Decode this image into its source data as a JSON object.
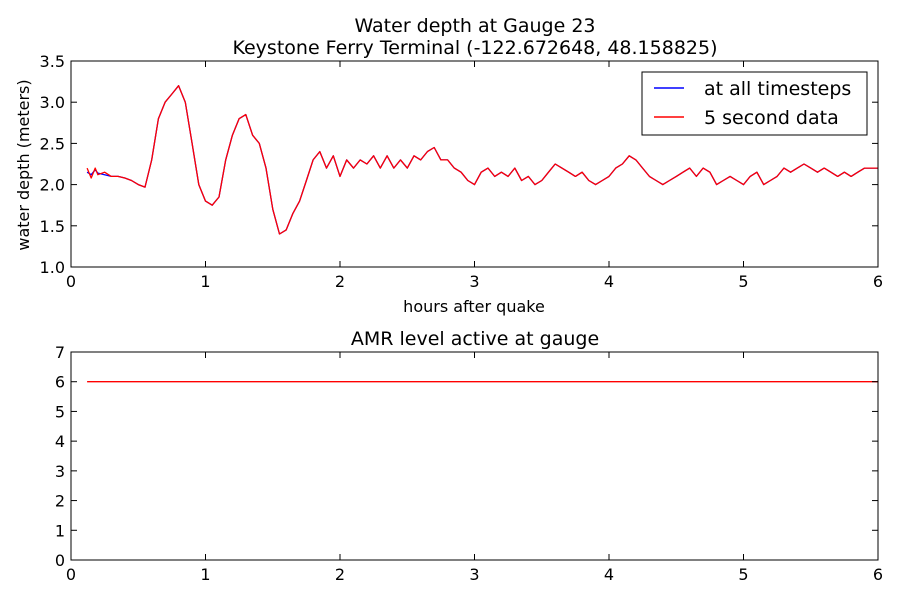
{
  "chart_data": [
    {
      "type": "line",
      "title": "Water depth at Gauge 23",
      "subtitle": "Keystone Ferry Terminal  (-122.672648, 48.158825)",
      "xlabel": "hours after quake",
      "ylabel": "water depth (meters)",
      "xlim": [
        0,
        6
      ],
      "ylim": [
        1.0,
        3.5
      ],
      "xticks": [
        "0",
        "1",
        "2",
        "3",
        "4",
        "5",
        "6"
      ],
      "yticks": [
        "1.0",
        "1.5",
        "2.0",
        "2.5",
        "3.0",
        "3.5"
      ],
      "grid": false,
      "legend_position": "top-right",
      "series": [
        {
          "name": "at all timesteps",
          "color": "#0000ff",
          "x": [
            0.12,
            0.15,
            0.18,
            0.2,
            0.25,
            0.3,
            0.35,
            0.4,
            0.45,
            0.5,
            0.55,
            0.6,
            0.65,
            0.7,
            0.75,
            0.8,
            0.85,
            0.9,
            0.95,
            1.0,
            1.05,
            1.1,
            1.15,
            1.2,
            1.25,
            1.3,
            1.35,
            1.4,
            1.45,
            1.5,
            1.55,
            1.6,
            1.65,
            1.7,
            1.75,
            1.8,
            1.85,
            1.9,
            1.95,
            2.0,
            2.05,
            2.1,
            2.15,
            2.2,
            2.25,
            2.3,
            2.35,
            2.4,
            2.45,
            2.5,
            2.55,
            2.6,
            2.65,
            2.7,
            2.75,
            2.8,
            2.85,
            2.9,
            2.95,
            3.0,
            3.05,
            3.1,
            3.15,
            3.2,
            3.25,
            3.3,
            3.35,
            3.4,
            3.45,
            3.5,
            3.55,
            3.6,
            3.65,
            3.7,
            3.75,
            3.8,
            3.85,
            3.9,
            3.95,
            4.0,
            4.05,
            4.1,
            4.15,
            4.2,
            4.25,
            4.3,
            4.35,
            4.4,
            4.45,
            4.5,
            4.55,
            4.6,
            4.65,
            4.7,
            4.75,
            4.8,
            4.85,
            4.9,
            4.95,
            5.0,
            5.05,
            5.1,
            5.15,
            5.2,
            5.25,
            5.3,
            5.35,
            5.4,
            5.45,
            5.5,
            5.55,
            5.6,
            5.65,
            5.7,
            5.75,
            5.8,
            5.85,
            5.9,
            5.95,
            6.0
          ],
          "y": [
            2.15,
            2.12,
            2.18,
            2.14,
            2.12,
            2.1,
            2.1,
            2.08,
            2.05,
            2.0,
            1.97,
            2.3,
            2.8,
            3.0,
            3.1,
            3.2,
            3.0,
            2.5,
            2.0,
            1.8,
            1.75,
            1.85,
            2.3,
            2.6,
            2.8,
            2.85,
            2.6,
            2.5,
            2.2,
            1.7,
            1.4,
            1.45,
            1.65,
            1.8,
            2.05,
            2.3,
            2.4,
            2.2,
            2.35,
            2.1,
            2.3,
            2.2,
            2.3,
            2.25,
            2.35,
            2.2,
            2.35,
            2.2,
            2.3,
            2.2,
            2.35,
            2.3,
            2.4,
            2.45,
            2.3,
            2.3,
            2.2,
            2.15,
            2.05,
            2.0,
            2.15,
            2.2,
            2.1,
            2.15,
            2.1,
            2.2,
            2.05,
            2.1,
            2.0,
            2.05,
            2.15,
            2.25,
            2.2,
            2.15,
            2.1,
            2.15,
            2.05,
            2.0,
            2.05,
            2.1,
            2.2,
            2.25,
            2.35,
            2.3,
            2.2,
            2.1,
            2.05,
            2.0,
            2.05,
            2.1,
            2.15,
            2.2,
            2.1,
            2.2,
            2.15,
            2.0,
            2.05,
            2.1,
            2.05,
            2.0,
            2.1,
            2.15,
            2.0,
            2.05,
            2.1,
            2.2,
            2.15,
            2.2,
            2.25,
            2.2,
            2.15,
            2.2,
            2.15,
            2.1,
            2.15,
            2.1,
            2.15,
            2.2,
            2.2,
            2.2
          ]
        },
        {
          "name": "5 second data",
          "color": "#ff0000",
          "x": [
            0.12,
            0.15,
            0.18,
            0.2,
            0.25,
            0.3,
            0.35,
            0.4,
            0.45,
            0.5,
            0.55,
            0.6,
            0.65,
            0.7,
            0.75,
            0.8,
            0.85,
            0.9,
            0.95,
            1.0,
            1.05,
            1.1,
            1.15,
            1.2,
            1.25,
            1.3,
            1.35,
            1.4,
            1.45,
            1.5,
            1.55,
            1.6,
            1.65,
            1.7,
            1.75,
            1.8,
            1.85,
            1.9,
            1.95,
            2.0,
            2.05,
            2.1,
            2.15,
            2.2,
            2.25,
            2.3,
            2.35,
            2.4,
            2.45,
            2.5,
            2.55,
            2.6,
            2.65,
            2.7,
            2.75,
            2.8,
            2.85,
            2.9,
            2.95,
            3.0,
            3.05,
            3.1,
            3.15,
            3.2,
            3.25,
            3.3,
            3.35,
            3.4,
            3.45,
            3.5,
            3.55,
            3.6,
            3.65,
            3.7,
            3.75,
            3.8,
            3.85,
            3.9,
            3.95,
            4.0,
            4.05,
            4.1,
            4.15,
            4.2,
            4.25,
            4.3,
            4.35,
            4.4,
            4.45,
            4.5,
            4.55,
            4.6,
            4.65,
            4.7,
            4.75,
            4.8,
            4.85,
            4.9,
            4.95,
            5.0,
            5.05,
            5.1,
            5.15,
            5.2,
            5.25,
            5.3,
            5.35,
            5.4,
            5.45,
            5.5,
            5.55,
            5.6,
            5.65,
            5.7,
            5.75,
            5.8,
            5.85,
            5.9,
            5.95,
            6.0
          ],
          "y": [
            2.2,
            2.08,
            2.2,
            2.12,
            2.15,
            2.1,
            2.1,
            2.08,
            2.05,
            2.0,
            1.97,
            2.3,
            2.8,
            3.0,
            3.1,
            3.2,
            3.0,
            2.5,
            2.0,
            1.8,
            1.75,
            1.85,
            2.3,
            2.6,
            2.8,
            2.85,
            2.6,
            2.5,
            2.2,
            1.7,
            1.4,
            1.45,
            1.65,
            1.8,
            2.05,
            2.3,
            2.4,
            2.2,
            2.35,
            2.1,
            2.3,
            2.2,
            2.3,
            2.25,
            2.35,
            2.2,
            2.35,
            2.2,
            2.3,
            2.2,
            2.35,
            2.3,
            2.4,
            2.45,
            2.3,
            2.3,
            2.2,
            2.15,
            2.05,
            2.0,
            2.15,
            2.2,
            2.1,
            2.15,
            2.1,
            2.2,
            2.05,
            2.1,
            2.0,
            2.05,
            2.15,
            2.25,
            2.2,
            2.15,
            2.1,
            2.15,
            2.05,
            2.0,
            2.05,
            2.1,
            2.2,
            2.25,
            2.35,
            2.3,
            2.2,
            2.1,
            2.05,
            2.0,
            2.05,
            2.1,
            2.15,
            2.2,
            2.1,
            2.2,
            2.15,
            2.0,
            2.05,
            2.1,
            2.05,
            2.0,
            2.1,
            2.15,
            2.0,
            2.05,
            2.1,
            2.2,
            2.15,
            2.2,
            2.25,
            2.2,
            2.15,
            2.2,
            2.15,
            2.1,
            2.15,
            2.1,
            2.15,
            2.2,
            2.2,
            2.2
          ]
        }
      ]
    },
    {
      "type": "line",
      "title": "AMR level active at gauge",
      "xlabel": "",
      "ylabel": "",
      "xlim": [
        0,
        6
      ],
      "ylim": [
        0,
        7
      ],
      "xticks": [
        "0",
        "1",
        "2",
        "3",
        "4",
        "5",
        "6"
      ],
      "yticks": [
        "0",
        "1",
        "2",
        "3",
        "4",
        "5",
        "6",
        "7"
      ],
      "grid": false,
      "series": [
        {
          "color": "#ff0000",
          "x": [
            0.12,
            6.0
          ],
          "y": [
            6,
            6
          ]
        }
      ]
    }
  ]
}
